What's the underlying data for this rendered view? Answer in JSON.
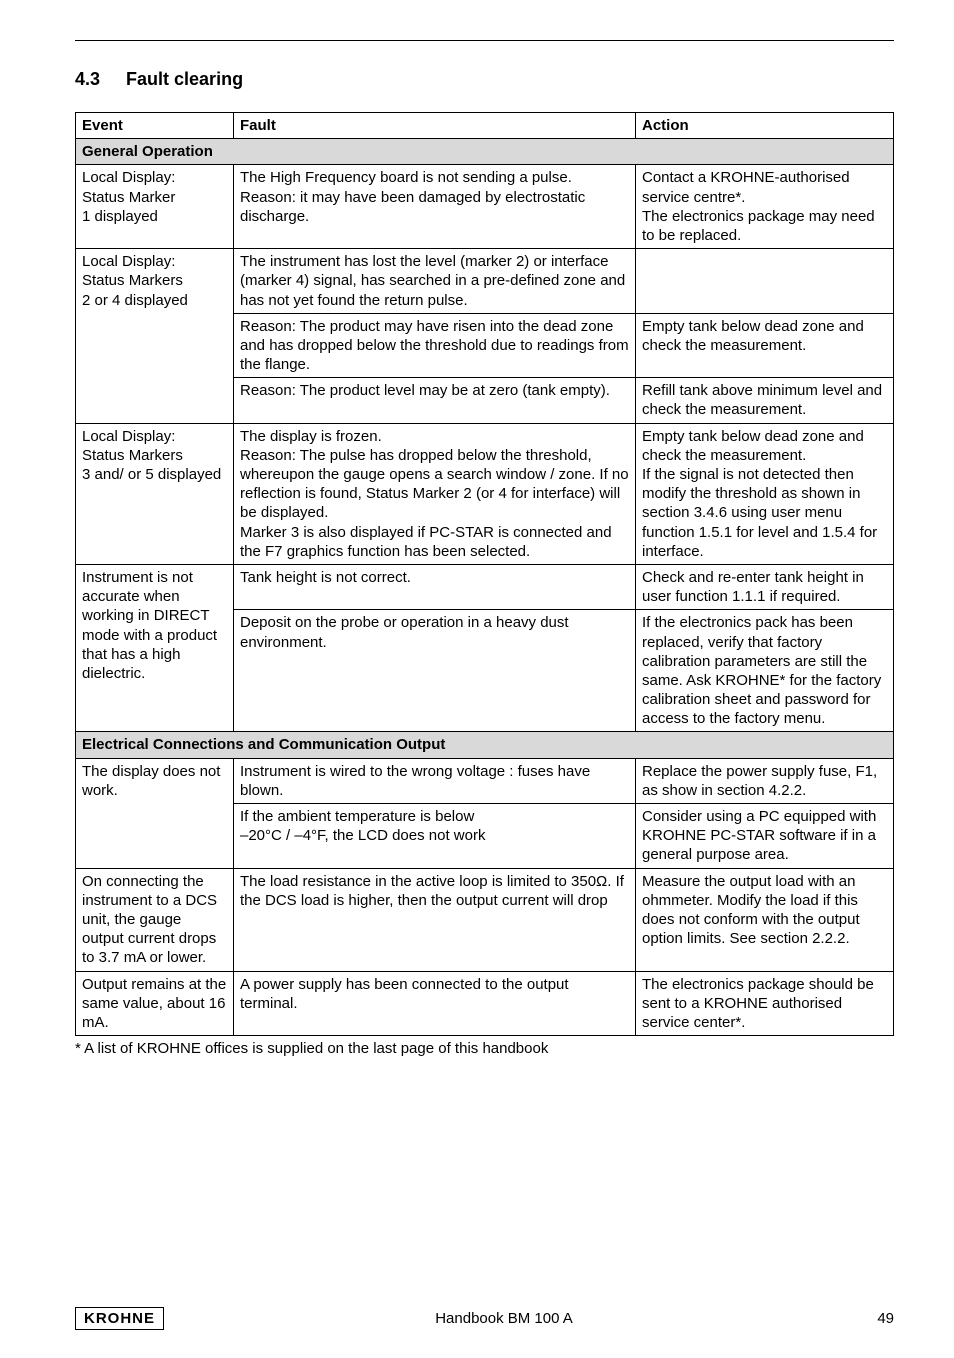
{
  "section": {
    "number": "4.3",
    "title": "Fault clearing"
  },
  "table": {
    "headers": {
      "event": "Event",
      "fault": "Fault",
      "action": "Action"
    },
    "group1": {
      "title": "General Operation"
    },
    "group2": {
      "title": "Electrical Connections and Communication Output"
    },
    "r1": {
      "event": "Local Display:\nStatus Marker\n1 displayed",
      "fault": "The High Frequency board is not sending a pulse.\nReason: it may have been damaged by electrostatic discharge.",
      "action": "Contact a KROHNE-authorised service centre*.\nThe electronics package may need to be replaced."
    },
    "r2": {
      "event": "Local Display:\nStatus Markers\n2 or 4 displayed",
      "fault_a": "The instrument has lost the level (marker 2) or interface (marker 4) signal, has searched in a pre-defined zone and has not yet found the return pulse.",
      "action_a": "",
      "fault_b": "Reason: The product may have risen into the dead zone and has dropped below the threshold due to readings from the flange.",
      "action_b": "Empty tank below dead zone and check the measurement.",
      "fault_c": "Reason: The product level may be at zero (tank empty).",
      "action_c": "Refill tank above minimum level and check the measurement."
    },
    "r3": {
      "event": "Local Display:\nStatus Markers\n3 and/ or 5 displayed",
      "fault": "The display is frozen.\nReason: The pulse has dropped below the threshold, whereupon the gauge opens a search window / zone. If no reflection is found, Status Marker 2 (or 4 for interface) will be displayed.\nMarker 3 is also displayed if PC-STAR is connected and the F7 graphics function has been selected.",
      "action": "Empty tank below dead zone and check the measurement.\nIf the signal is not detected then modify the threshold as shown in section 3.4.6 using user menu function 1.5.1 for level and 1.5.4 for interface."
    },
    "r4": {
      "event": "Instrument is not accurate when working in DIRECT mode with a product that has a high dielectric.",
      "fault_a": "Tank height is not correct.",
      "action_a": "Check and re-enter tank height in user function 1.1.1 if required.",
      "fault_b": "Deposit on the probe or operation in a heavy dust environment.",
      "action_b": "If the electronics pack has been replaced, verify that factory calibration parameters are still the same. Ask KROHNE* for the factory calibration sheet and password for access to the factory menu."
    },
    "r5": {
      "event": "The display does not work.",
      "fault_a": "Instrument is wired to the wrong voltage : fuses have blown.",
      "action_a": "Replace the power supply fuse, F1, as show in section 4.2.2.",
      "fault_b": "If the ambient temperature is below\n–20°C / –4°F, the LCD does not work",
      "action_b": "Consider using a PC equipped with KROHNE PC-STAR software if in a general purpose area."
    },
    "r6": {
      "event": "On connecting the instrument to a DCS unit, the gauge output current drops to 3.7 mA or lower.",
      "fault": "The load resistance in the active loop is limited to 350Ω. If the DCS load is higher, then the output current will drop",
      "action": "Measure the output load with an ohmmeter. Modify the load if this does not conform with the output option limits. See section 2.2.2."
    },
    "r7": {
      "event": "Output remains at the same value, about 16 mA.",
      "fault": "A power supply has been connected to the output terminal.",
      "action": "The electronics package should be sent to a KROHNE authorised service center*."
    }
  },
  "footnote": "* A list of KROHNE offices is supplied on the last page of this handbook",
  "footer": {
    "brand": "KROHNE",
    "doc": "Handbook BM 100 A",
    "page": "49"
  }
}
